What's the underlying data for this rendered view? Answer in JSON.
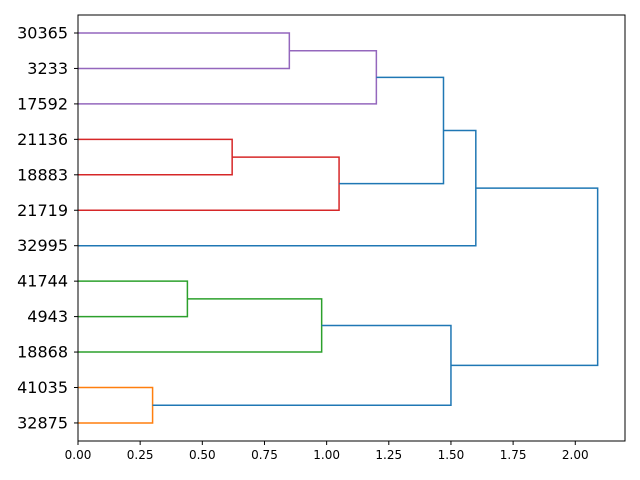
{
  "chart_data": {
    "type": "dendrogram",
    "orientation": "left",
    "title": "",
    "xlabel": "",
    "ylabel": "",
    "xlim": [
      0,
      2.2
    ],
    "x_ticks": [
      0.0,
      0.25,
      0.5,
      0.75,
      1.0,
      1.25,
      1.5,
      1.75,
      2.0
    ],
    "x_tick_labels": [
      "0.00",
      "0.25",
      "0.50",
      "0.75",
      "1.00",
      "1.25",
      "1.50",
      "1.75",
      "2.00"
    ],
    "leaves": [
      "30365",
      "3233",
      "17592",
      "21136",
      "18883",
      "21719",
      "32995",
      "41744",
      "4943",
      "18868",
      "41035",
      "32875"
    ],
    "merges": [
      {
        "a": "leaf:0",
        "b": "leaf:1",
        "height": 0.85,
        "color": "#9467bd"
      },
      {
        "a": "node:0",
        "b": "leaf:2",
        "height": 1.2,
        "color": "#9467bd"
      },
      {
        "a": "leaf:3",
        "b": "leaf:4",
        "height": 0.62,
        "color": "#d62728"
      },
      {
        "a": "node:2",
        "b": "leaf:5",
        "height": 1.05,
        "color": "#d62728"
      },
      {
        "a": "node:1",
        "b": "node:3",
        "height": 1.47,
        "color": "#1f77b4"
      },
      {
        "a": "node:4",
        "b": "leaf:6",
        "height": 1.6,
        "color": "#1f77b4"
      },
      {
        "a": "leaf:7",
        "b": "leaf:8",
        "height": 0.44,
        "color": "#2ca02c"
      },
      {
        "a": "node:6",
        "b": "leaf:9",
        "height": 0.98,
        "color": "#2ca02c"
      },
      {
        "a": "leaf:10",
        "b": "leaf:11",
        "height": 0.3,
        "color": "#ff7f0e"
      },
      {
        "a": "node:7",
        "b": "node:8",
        "height": 1.5,
        "color": "#1f77b4"
      },
      {
        "a": "node:5",
        "b": "node:9",
        "height": 2.09,
        "color": "#1f77b4"
      }
    ]
  }
}
